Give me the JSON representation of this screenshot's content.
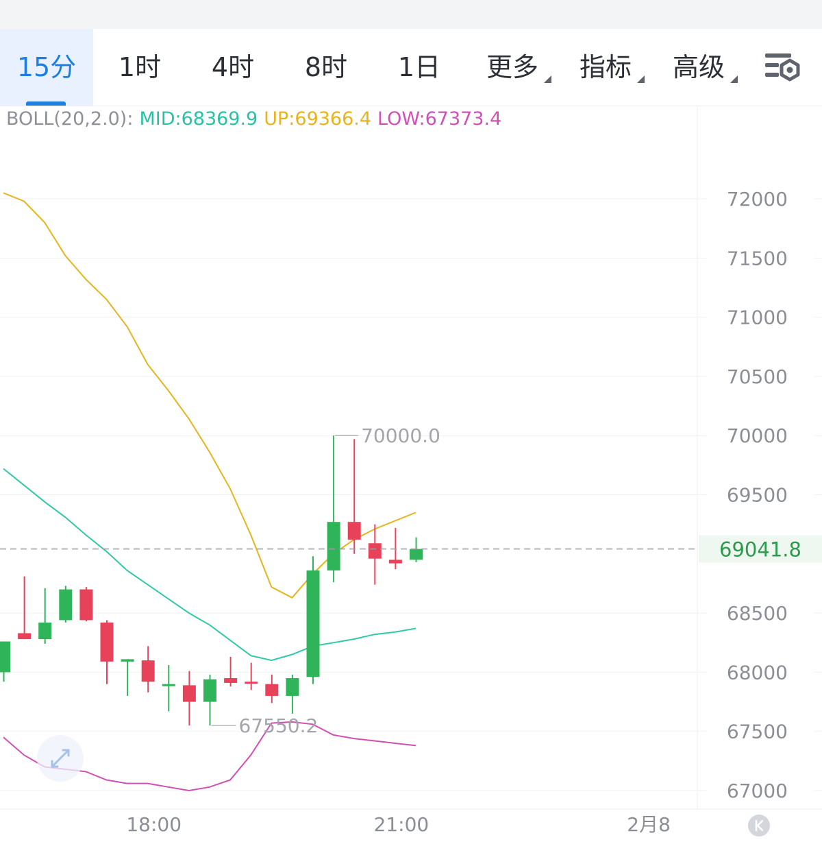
{
  "toolbar": {
    "tabs": [
      {
        "label": "15分",
        "active": true
      },
      {
        "label": "1时"
      },
      {
        "label": "4时"
      },
      {
        "label": "8时"
      },
      {
        "label": "1日"
      },
      {
        "label": "更多",
        "dropdown": true
      },
      {
        "label": "指标",
        "dropdown": true
      },
      {
        "label": "高级",
        "dropdown": true
      }
    ],
    "settings_icon": "chart-settings-icon"
  },
  "indicator": {
    "name": "BOLL(20,2.0):",
    "mid": "MID:68369.9",
    "up": "UP:69366.4",
    "low": "LOW:67373.4"
  },
  "chart_data": {
    "type": "candlestick",
    "title": "",
    "y_ticks": [
      "72000",
      "71500",
      "71000",
      "70500",
      "70000",
      "69500",
      "68500",
      "68000",
      "67500",
      "67000"
    ],
    "y_tick_values": [
      72000,
      71500,
      71000,
      70500,
      70000,
      69500,
      68500,
      68000,
      67500,
      67000
    ],
    "ylim": [
      66930,
      72580
    ],
    "x_ticks": [
      "18:00",
      "21:00",
      "2月8"
    ],
    "x_tick_index": [
      7,
      19,
      31
    ],
    "current_price": "69041.8",
    "current_price_value": 69041.8,
    "max_label": "70000.0",
    "max_index": 16,
    "min_label": "67550.2",
    "min_index": 10,
    "colors": {
      "up": "#2fb45a",
      "down": "#e8425a",
      "mid": "#2fc9a6",
      "upper": "#e6b41c",
      "lower": "#d04fb3",
      "price": "#2d9a4d"
    },
    "candles": [
      {
        "o": 68000,
        "h": 68260,
        "l": 67920,
        "c": 68260
      },
      {
        "o": 68330,
        "h": 68810,
        "l": 68280,
        "c": 68280
      },
      {
        "o": 68280,
        "h": 68710,
        "l": 68240,
        "c": 68420
      },
      {
        "o": 68440,
        "h": 68730,
        "l": 68420,
        "c": 68700
      },
      {
        "o": 68700,
        "h": 68720,
        "l": 68430,
        "c": 68440
      },
      {
        "o": 68420,
        "h": 68440,
        "l": 67900,
        "c": 68090
      },
      {
        "o": 68090,
        "h": 68110,
        "l": 67800,
        "c": 68110
      },
      {
        "o": 68100,
        "h": 68220,
        "l": 67830,
        "c": 67920
      },
      {
        "o": 67900,
        "h": 68060,
        "l": 67670,
        "c": 67900
      },
      {
        "o": 67890,
        "h": 68010,
        "l": 67550,
        "c": 67750
      },
      {
        "o": 67750,
        "h": 67980,
        "l": 67550.2,
        "c": 67940
      },
      {
        "o": 67950,
        "h": 68130,
        "l": 67880,
        "c": 67910
      },
      {
        "o": 67920,
        "h": 68080,
        "l": 67850,
        "c": 67910
      },
      {
        "o": 67900,
        "h": 67980,
        "l": 67740,
        "c": 67800
      },
      {
        "o": 67800,
        "h": 67980,
        "l": 67650,
        "c": 67950
      },
      {
        "o": 67960,
        "h": 68980,
        "l": 67900,
        "c": 68860
      },
      {
        "o": 68860,
        "h": 70000,
        "l": 68760,
        "c": 69270
      },
      {
        "o": 69270,
        "h": 69970,
        "l": 69000,
        "c": 69120
      },
      {
        "o": 69090,
        "h": 69250,
        "l": 68740,
        "c": 68960
      },
      {
        "o": 68950,
        "h": 69220,
        "l": 68870,
        "c": 68920
      },
      {
        "o": 68950,
        "h": 69140,
        "l": 68930,
        "c": 69041.8
      }
    ],
    "upper_band": [
      72050,
      71980,
      71800,
      71520,
      71320,
      71150,
      70920,
      70600,
      70380,
      70140,
      69860,
      69550,
      69160,
      68720,
      68630,
      68830,
      69000,
      69120,
      69210,
      69280,
      69350
    ],
    "mid_band": [
      69720,
      69580,
      69440,
      69310,
      69160,
      69020,
      68860,
      68740,
      68620,
      68500,
      68400,
      68270,
      68140,
      68100,
      68150,
      68220,
      68250,
      68280,
      68320,
      68340,
      68370
    ],
    "lower_band": [
      67450,
      67300,
      67200,
      67180,
      67160,
      67090,
      67060,
      67060,
      67030,
      67000,
      67030,
      67090,
      67300,
      67570,
      67580,
      67560,
      67470,
      67440,
      67420,
      67400,
      67380
    ]
  }
}
